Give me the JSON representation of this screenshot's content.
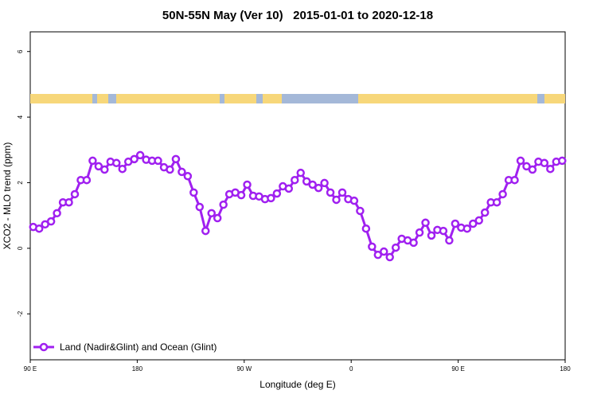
{
  "chart_data": {
    "type": "line",
    "title": "50N-55N May (Ver 10)   2015-01-01 to 2020-12-18",
    "x_label": "Longitude (deg E)",
    "y_label": "XCO2 - MLO trend (ppm)",
    "xlim": [
      90,
      540
    ],
    "xticks": [
      {
        "value": 90,
        "label": "90 E"
      },
      {
        "value": 180,
        "label": "180"
      },
      {
        "value": 270,
        "label": "90 W"
      },
      {
        "value": 360,
        "label": "0"
      },
      {
        "value": 450,
        "label": "90 E"
      },
      {
        "value": 540,
        "label": "180"
      }
    ],
    "ylim": [
      -3.4,
      6.6
    ],
    "yticks": [
      -2,
      0,
      2,
      4,
      6
    ],
    "legend": "bottom-left",
    "x": [
      92.5,
      97.5,
      102.5,
      107.5,
      112.5,
      117.5,
      122.5,
      127.5,
      132.5,
      137.5,
      142.5,
      147.5,
      152.5,
      157.5,
      162.5,
      167.5,
      172.5,
      177.5,
      182.5,
      187.5,
      192.5,
      197.5,
      202.5,
      207.5,
      212.5,
      217.5,
      222.5,
      227.5,
      232.5,
      237.5,
      242.5,
      247.5,
      252.5,
      257.5,
      262.5,
      267.5,
      272.5,
      277.5,
      282.5,
      287.5,
      292.5,
      297.5,
      302.5,
      307.5,
      312.5,
      317.5,
      322.5,
      327.5,
      332.5,
      337.5,
      342.5,
      347.5,
      352.5,
      357.5,
      362.5,
      367.5,
      372.5,
      377.5,
      382.5,
      387.5,
      392.5,
      397.5,
      402.5,
      407.5,
      412.5,
      417.5,
      422.5,
      427.5,
      432.5,
      437.5,
      442.5,
      447.5,
      452.5,
      457.5,
      462.5,
      467.5,
      472.5,
      477.5,
      482.5,
      487.5,
      492.5,
      497.5,
      502.5,
      507.5,
      512.5,
      517.5,
      522.5,
      527.5,
      532.5,
      537.5
    ],
    "series": [
      {
        "name": "Land (Nadir&Glint) and Ocean (Glint)",
        "color": "#a020f0",
        "values": [
          0.65,
          0.6,
          0.73,
          0.82,
          1.07,
          1.4,
          1.4,
          1.65,
          2.08,
          2.08,
          2.67,
          2.5,
          2.4,
          2.64,
          2.6,
          2.42,
          2.64,
          2.72,
          2.84,
          2.7,
          2.67,
          2.67,
          2.47,
          2.4,
          2.72,
          2.33,
          2.2,
          1.7,
          1.26,
          0.53,
          1.07,
          0.92,
          1.33,
          1.65,
          1.7,
          1.62,
          1.94,
          1.6,
          1.58,
          1.5,
          1.53,
          1.67,
          1.89,
          1.82,
          2.08,
          2.3,
          2.04,
          1.94,
          1.84,
          1.99,
          1.7,
          1.48,
          1.7,
          1.5,
          1.45,
          1.14,
          0.6,
          0.05,
          -0.2,
          -0.1,
          -0.27,
          0.02,
          0.29,
          0.24,
          0.17,
          0.48,
          0.78,
          0.39,
          0.56,
          0.53,
          0.24,
          0.75,
          0.63,
          0.6,
          0.75,
          0.85,
          1.09,
          1.4,
          1.4,
          1.65,
          2.08,
          2.08,
          2.67,
          2.5,
          2.4,
          2.64,
          2.6,
          2.42,
          2.64,
          2.67
        ]
      }
    ]
  }
}
